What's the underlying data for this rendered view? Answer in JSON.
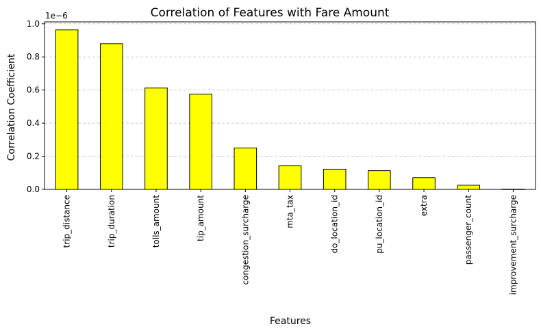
{
  "chart_data": {
    "type": "bar",
    "title": "Correlation of Features with Fare Amount",
    "xlabel": "Features",
    "ylabel": "Correlation Coefficient",
    "y_offset_label": "1e−6",
    "categories": [
      "trip_distance",
      "trip_duration",
      "tolls_amount",
      "tip_amount",
      "congestion_surcharge",
      "mta_tax",
      "do_location_id",
      "pu_location_id",
      "extra",
      "passenger_count",
      "improvement_surcharge"
    ],
    "values": [
      0.963,
      0.88,
      0.612,
      0.575,
      0.25,
      0.142,
      0.122,
      0.113,
      0.071,
      0.025,
      0.001
    ],
    "value_multiplier": "1e-6",
    "ylim": [
      0,
      1.0
    ],
    "yticks": [
      0.0,
      0.2,
      0.4,
      0.6,
      0.8,
      1.0
    ],
    "ytick_labels": [
      "0.0",
      "0.2",
      "0.4",
      "0.6",
      "0.8",
      "1.0"
    ],
    "grid": "y-dashed",
    "bar_color": "#ffff00",
    "bar_edge_color": "#000000",
    "grid_color": "#c8c8c8"
  }
}
